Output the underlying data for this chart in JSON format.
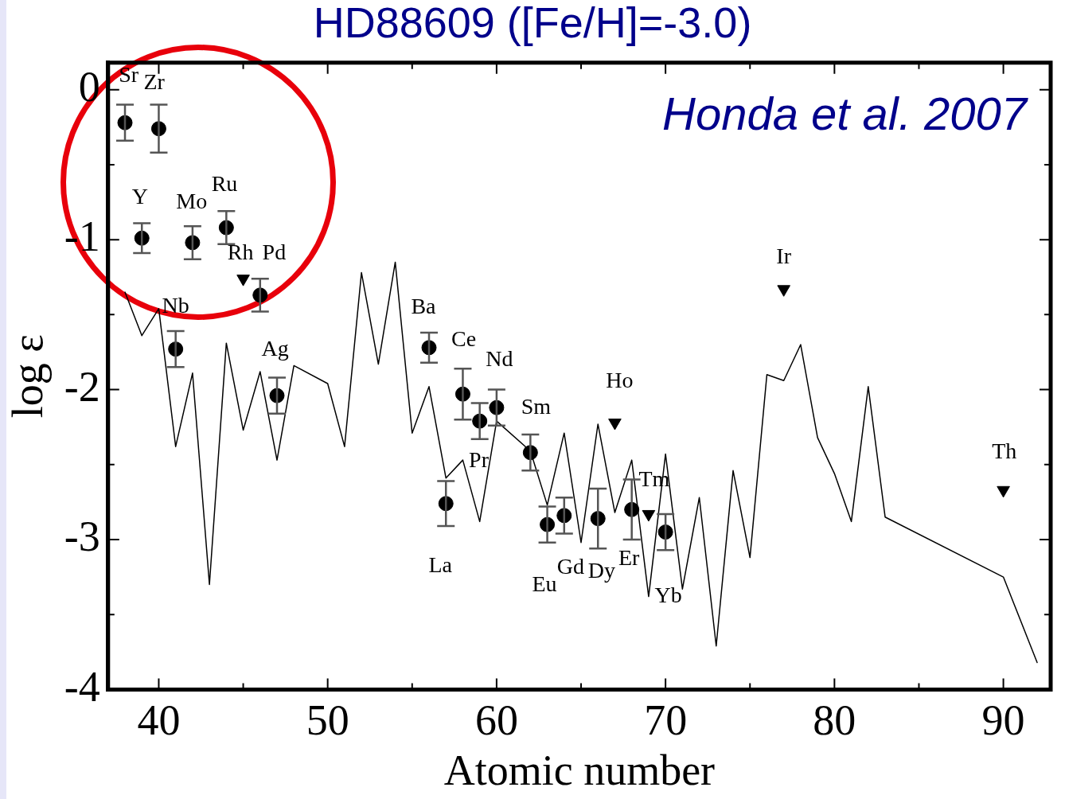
{
  "chart_data": {
    "type": "scatter",
    "title": "HD88609 ([Fe/H]=-3.0)",
    "xlabel": "Atomic number",
    "ylabel": "log ε",
    "xlim": [
      37,
      92.8
    ],
    "ylim": [
      -4,
      0.18
    ],
    "xticks": [
      40,
      {
        "value": 45,
        "label": null
      },
      50,
      {
        "value": 55,
        "label": null
      },
      60,
      {
        "value": 65,
        "label": null
      },
      70,
      {
        "value": 75,
        "label": null
      },
      80,
      {
        "value": 85,
        "label": null
      },
      90
    ],
    "yticks": [
      -4,
      {
        "value": -3.5,
        "label": null
      },
      -3,
      {
        "value": -2.5,
        "label": null
      },
      -2,
      {
        "value": -1.5,
        "label": null
      },
      -1,
      {
        "value": -0.5,
        "label": null
      },
      0
    ],
    "grid": false,
    "legend": false,
    "series": [
      {
        "type": "line",
        "color": "#000000",
        "marker": "none",
        "x": [
          38,
          39,
          40,
          41,
          42,
          43,
          44,
          45,
          46,
          47,
          48,
          50,
          51,
          52,
          53,
          54,
          55,
          56,
          57,
          58,
          59,
          60,
          62,
          63,
          64,
          65,
          66,
          67,
          68,
          69,
          70,
          71,
          72,
          73,
          74,
          75,
          76,
          77,
          78,
          79,
          80,
          81,
          82,
          83,
          90,
          92
        ],
        "values": [
          -1.35,
          -1.64,
          -1.46,
          -2.38,
          -1.89,
          -3.3,
          -1.69,
          -2.27,
          -1.88,
          -2.47,
          -1.84,
          -1.96,
          -2.38,
          -1.22,
          -1.83,
          -1.15,
          -2.29,
          -1.98,
          -2.59,
          -2.47,
          -2.88,
          -2.21,
          -2.41,
          -2.77,
          -2.29,
          -3.02,
          -2.23,
          -2.82,
          -2.47,
          -3.38,
          -2.43,
          -3.33,
          -2.72,
          -3.71,
          -2.54,
          -3.12,
          -1.9,
          -1.94,
          -1.7,
          -2.32,
          -2.56,
          -2.88,
          -1.98,
          -2.85,
          -3.25,
          -3.82
        ]
      },
      {
        "type": "scatter",
        "color": "#000000",
        "marker": "circle",
        "x": [
          38,
          39,
          40,
          41,
          42,
          44,
          46,
          47,
          56,
          57,
          58,
          59,
          60,
          62,
          63,
          64,
          66,
          68,
          70
        ],
        "values": [
          -0.22,
          -0.99,
          -0.26,
          -1.73,
          -1.02,
          -0.92,
          -1.37,
          -2.04,
          -1.72,
          -2.76,
          -2.03,
          -2.21,
          -2.12,
          -2.42,
          -2.9,
          -2.84,
          -2.86,
          -2.8,
          -2.95
        ],
        "errors": [
          0.12,
          0.1,
          0.16,
          0.12,
          0.11,
          0.11,
          0.11,
          0.12,
          0.1,
          0.15,
          0.17,
          0.12,
          0.12,
          0.12,
          0.12,
          0.12,
          0.2,
          0.2,
          0.12
        ]
      },
      {
        "type": "scatter",
        "color": "#000000",
        "marker": "triangle",
        "x": [
          45,
          67,
          69,
          77,
          90
        ],
        "values": [
          -1.26,
          -2.22,
          -2.83,
          -1.33,
          -2.67
        ]
      }
    ],
    "annotations": [
      "Honda et al. 2007",
      {
        "text": "Sr",
        "x": 38,
        "y": -0.22
      },
      {
        "text": "Zr",
        "x": 40,
        "y": -0.26
      },
      {
        "text": "Y",
        "x": 39,
        "y": -0.99
      },
      {
        "text": "Mo",
        "x": 42,
        "y": -1.02
      },
      {
        "text": "Ru",
        "x": 44,
        "y": -0.92
      },
      {
        "text": "Rh",
        "x": 45,
        "y": -1.26
      },
      {
        "text": "Pd",
        "x": 46,
        "y": -1.37
      },
      {
        "text": "Nb",
        "x": 41,
        "y": -1.73
      },
      {
        "text": "Ag",
        "x": 47,
        "y": -2.04
      },
      {
        "text": "Ba",
        "x": 56,
        "y": -1.72
      },
      {
        "text": "Ce",
        "x": 58,
        "y": -2.03
      },
      {
        "text": "Nd",
        "x": 60,
        "y": -2.12
      },
      {
        "text": "Sm",
        "x": 62,
        "y": -2.42
      },
      {
        "text": "Pr",
        "x": 59,
        "y": -2.21
      },
      {
        "text": "La",
        "x": 57,
        "y": -2.76
      },
      {
        "text": "Eu",
        "x": 63,
        "y": -2.9
      },
      {
        "text": "Gd",
        "x": 64,
        "y": -2.84
      },
      {
        "text": "Dy",
        "x": 66,
        "y": -2.86
      },
      {
        "text": "Er",
        "x": 68,
        "y": -2.8
      },
      {
        "text": "Yb",
        "x": 70,
        "y": -2.95
      },
      {
        "text": "Tm",
        "x": 69,
        "y": -2.83
      },
      {
        "text": "Ho",
        "x": 67,
        "y": -2.22
      },
      {
        "text": "Ir",
        "x": 77,
        "y": -1.33
      },
      {
        "text": "Th",
        "x": 90,
        "y": -2.67
      }
    ]
  }
}
